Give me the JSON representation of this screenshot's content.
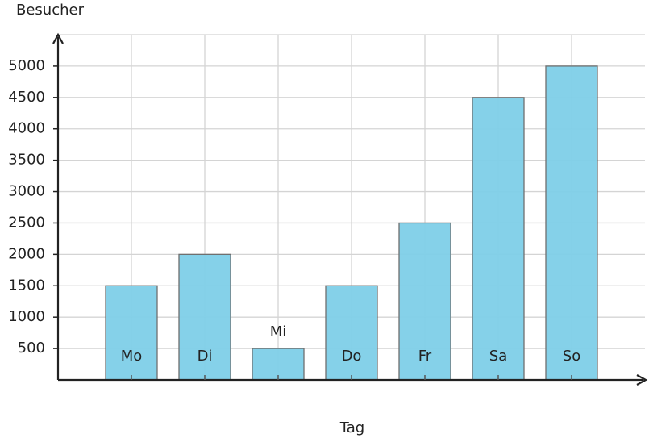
{
  "chart_data": {
    "type": "bar",
    "y_label": "Besucher",
    "x_label": "Tag",
    "categories": [
      "Mo",
      "Di",
      "Mi",
      "Do",
      "Fr",
      "Sa",
      "So"
    ],
    "values": [
      1500,
      2000,
      500,
      1500,
      2500,
      4500,
      5000
    ],
    "color": "#7ecfe8",
    "ylim": [
      0,
      5500
    ],
    "yticks": [
      500,
      1000,
      1500,
      2000,
      2500,
      3000,
      3500,
      4000,
      4500,
      5000
    ],
    "grid": true
  }
}
